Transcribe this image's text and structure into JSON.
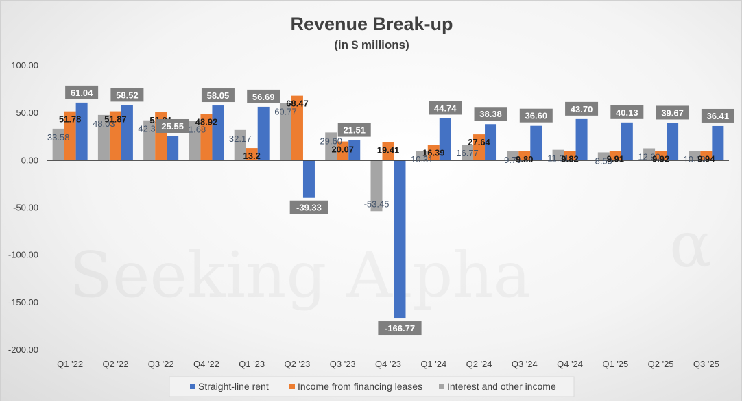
{
  "chart_data": {
    "type": "bar",
    "title": "Revenue Break-up",
    "subtitle": "(in $ millions)",
    "watermark": "Seeking Alpha",
    "watermark_glyph": "α",
    "categories": [
      "Q1 '22",
      "Q2 '22",
      "Q3 '22",
      "Q4 '22",
      "Q1 '23",
      "Q2 '23",
      "Q3 '23",
      "Q4 '23",
      "Q1 '24",
      "Q2 '24",
      "Q3 '24",
      "Q4 '24",
      "Q1 '25",
      "Q2 '25",
      "Q3 '25"
    ],
    "ylim": [
      -200,
      100
    ],
    "y_ticks": [
      "100.00",
      "50.00",
      "0.00",
      "-50.00",
      "-100.00",
      "-150.00",
      "-200.00"
    ],
    "y_tick_values": [
      100,
      50,
      0,
      -50,
      -100,
      -150,
      -200
    ],
    "gridlines": false,
    "legend_position": "bottom",
    "series": [
      {
        "name": "Interest and other income",
        "color": "#a5a5a5",
        "values": [
          33.58,
          48.03,
          42.36,
          41.68,
          32.17,
          60.77,
          29.6,
          -53.45,
          10.31,
          16.77,
          9.79,
          11.31,
          8.59,
          12.9,
          10.19
        ],
        "labels": [
          "33.58",
          "48.03",
          "42.36",
          "41.68",
          "32.17",
          "60.77",
          "29.60",
          "-53.45",
          "10.31",
          "16.77",
          "9.79",
          "11.31",
          "8.59",
          "12.90",
          "10.19"
        ]
      },
      {
        "name": "Income from financing leases",
        "color": "#ed7d31",
        "values": [
          51.78,
          51.87,
          51.01,
          48.92,
          13.2,
          68.47,
          20.07,
          19.41,
          16.39,
          27.64,
          9.8,
          9.82,
          9.91,
          9.92,
          9.94
        ],
        "labels": [
          "51.78",
          "51.87",
          "51.01",
          "48.92",
          "13.2",
          "68.47",
          "20.07",
          "19.41",
          "16.39",
          "27.64",
          "9.80",
          "9.82",
          "9.91",
          "9.92",
          "9.94"
        ]
      },
      {
        "name": "Straight-line rent",
        "color": "#4472c4",
        "values": [
          61.04,
          58.52,
          25.55,
          58.05,
          56.69,
          -39.33,
          21.51,
          -166.77,
          44.74,
          38.38,
          36.6,
          43.7,
          40.13,
          39.67,
          36.41
        ],
        "labels": [
          "61.04",
          "58.52",
          "25.55",
          "58.05",
          "56.69",
          "-39.33",
          "21.51",
          "-166.77",
          "44.74",
          "38.38",
          "36.60",
          "43.70",
          "40.13",
          "39.67",
          "36.41"
        ]
      }
    ],
    "legend_order": [
      "Straight-line rent",
      "Income from financing leases",
      "Interest and other income"
    ],
    "rent_label_box_color": "#7f7f7f"
  }
}
